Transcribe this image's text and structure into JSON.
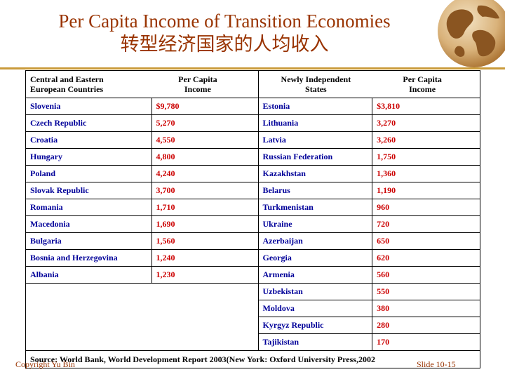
{
  "slide": {
    "title": "Per Capita Income of Transition Economies",
    "subtitle": "转型经济国家的人均收入",
    "copyright": "Copyright  Yu Bin",
    "slide_number": "Slide 10-15"
  },
  "table": {
    "headers": {
      "left_region_line1": "Central and Eastern",
      "left_region_line2": "European Countries",
      "left_income_line1": "Per Capita",
      "left_income_line2": "Income",
      "right_region_line1": "Newly Independent",
      "right_region_line2": "States",
      "right_income_line1": "Per Capita",
      "right_income_line2": "Income"
    },
    "rows": [
      {
        "left_country": "Slovenia",
        "left_income": "$9,780",
        "right_country": "Estonia",
        "right_income": "$3,810"
      },
      {
        "left_country": "Czech Republic",
        "left_income": "5,270",
        "right_country": "Lithuania",
        "right_income": "3,270"
      },
      {
        "left_country": "Croatia",
        "left_income": "4,550",
        "right_country": "Latvia",
        "right_income": "3,260"
      },
      {
        "left_country": "Hungary",
        "left_income": "4,800",
        "right_country": "Russian Federation",
        "right_income": "1,750"
      },
      {
        "left_country": "Poland",
        "left_income": "4,240",
        "right_country": "Kazakhstan",
        "right_income": "1,360"
      },
      {
        "left_country": "Slovak Republic",
        "left_income": "3,700",
        "right_country": "Belarus",
        "right_income": "1,190"
      },
      {
        "left_country": "Romania",
        "left_income": "1,710",
        "right_country": "Turkmenistan",
        "right_income": "960"
      },
      {
        "left_country": "Macedonia",
        "left_income": "1,690",
        "right_country": "Ukraine",
        "right_income": "720"
      },
      {
        "left_country": "Bulgaria",
        "left_income": "1,560",
        "right_country": "Azerbaijan",
        "right_income": "650"
      },
      {
        "left_country": "Bosnia and Herzegovina",
        "left_income": "1,240",
        "right_country": "Georgia",
        "right_income": "620"
      },
      {
        "left_country": "Albania",
        "left_income": "1,230",
        "right_country": "Armenia",
        "right_income": "560"
      }
    ],
    "extra_rows": [
      {
        "right_country": "Uzbekistan",
        "right_income": "550"
      },
      {
        "right_country": "Moldova",
        "right_income": "380"
      },
      {
        "right_country": "Kyrgyz Republic",
        "right_income": "280"
      },
      {
        "right_country": "Tajikistan",
        "right_income": "170"
      }
    ],
    "source": "Source: World Bank, World Development Report 2003(New York: Oxford University Press,2002"
  },
  "colors": {
    "title": "#993300",
    "country_name": "#000099",
    "income_value": "#cc0000",
    "rule": "#c99a3a"
  },
  "icons": [
    "globe-icon"
  ]
}
